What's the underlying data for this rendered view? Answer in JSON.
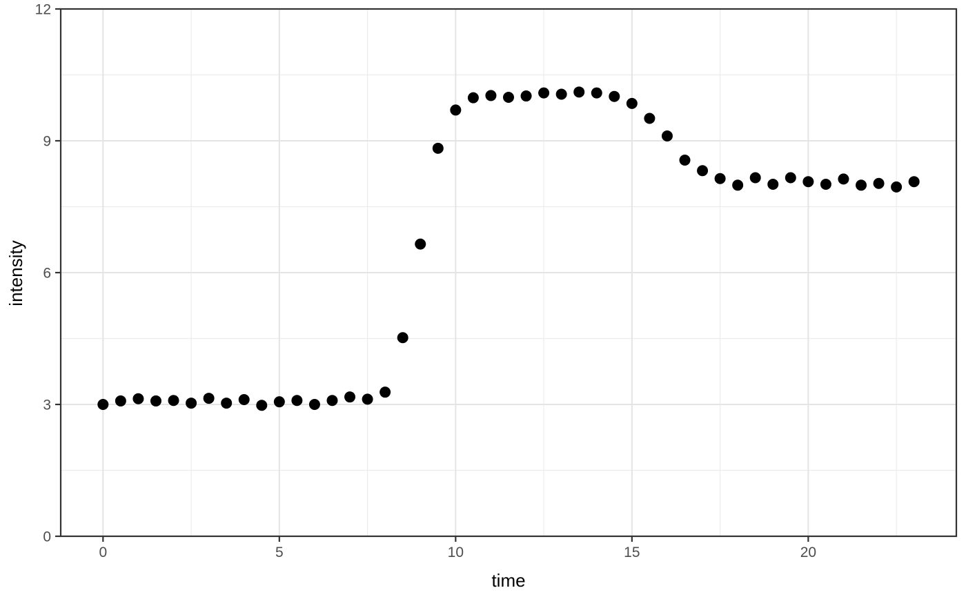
{
  "chart_data": {
    "type": "scatter",
    "title": "",
    "xlabel": "time",
    "ylabel": "intensity",
    "xlim": [
      -1.2,
      24.2
    ],
    "ylim": [
      0,
      12
    ],
    "grid": "on",
    "legend": "none",
    "x_major_ticks": [
      0,
      5,
      10,
      15,
      20
    ],
    "x_major_tick_labels": [
      "0",
      "5",
      "10",
      "15",
      "20"
    ],
    "x_minor_ticks": [
      2.5,
      7.5,
      12.5,
      17.5,
      22.5
    ],
    "y_major_ticks": [
      0,
      3,
      6,
      9,
      12
    ],
    "y_major_tick_labels": [
      "0",
      "3",
      "6",
      "9",
      "12"
    ],
    "y_minor_ticks": [
      1.5,
      4.5,
      7.5,
      10.5
    ],
    "series": [
      {
        "name": "intensity",
        "x": [
          0,
          0.5,
          1,
          1.5,
          2,
          2.5,
          3,
          3.5,
          4,
          4.5,
          5,
          5.5,
          6,
          6.5,
          7,
          7.5,
          8,
          8.5,
          9,
          9.5,
          10,
          10.5,
          11,
          11.5,
          12,
          12.5,
          13,
          13.5,
          14,
          14.5,
          15,
          15.5,
          16,
          16.5,
          17,
          17.5,
          18,
          18.5,
          19,
          19.5,
          20,
          20.5,
          21,
          21.5,
          22,
          22.5,
          23
        ],
        "y": [
          3.0,
          3.08,
          3.13,
          3.08,
          3.09,
          3.03,
          3.14,
          3.03,
          3.11,
          2.98,
          3.06,
          3.09,
          3.0,
          3.09,
          3.17,
          3.12,
          3.28,
          4.52,
          6.65,
          8.83,
          9.7,
          9.98,
          10.03,
          9.99,
          10.02,
          10.09,
          10.06,
          10.11,
          10.09,
          10.01,
          9.85,
          9.51,
          9.11,
          8.56,
          8.32,
          8.14,
          7.99,
          8.16,
          8.01,
          8.16,
          8.07,
          8.01,
          8.13,
          7.99,
          8.03,
          7.95,
          8.07
        ]
      }
    ],
    "colors": {
      "point": "#000000",
      "panel_background": "#ffffff",
      "grid_major": "#e4e4e4",
      "grid_minor": "#ececec",
      "panel_border": "#333333",
      "tick_mark": "#333333",
      "tick_label": "#4d4d4d",
      "axis_title": "#000000"
    }
  }
}
